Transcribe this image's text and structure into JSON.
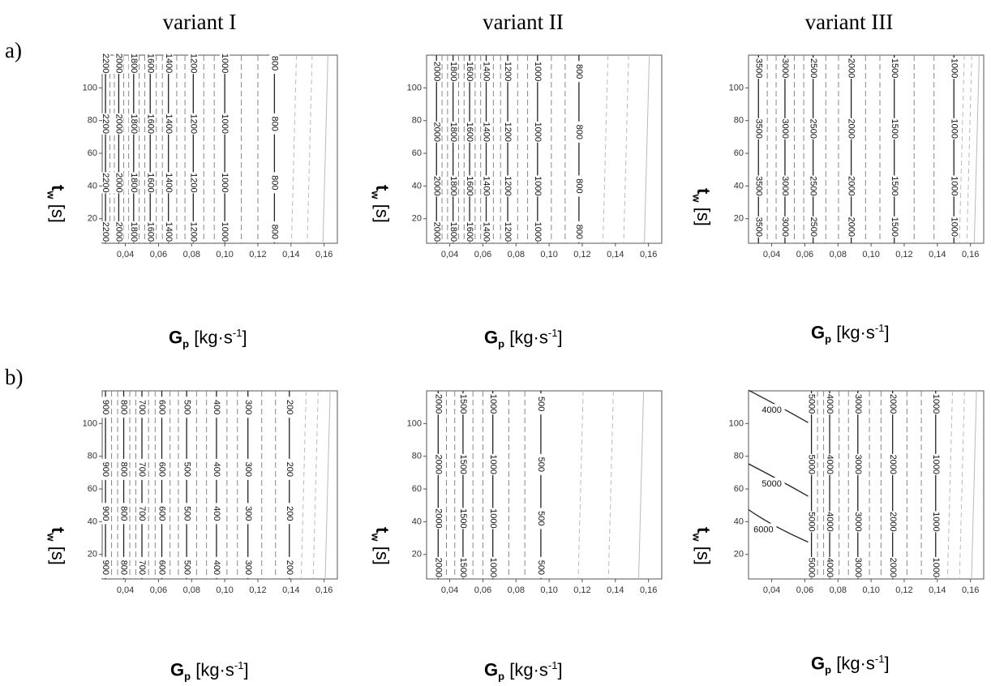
{
  "columns": [
    "variant I",
    "variant II",
    "variant III"
  ],
  "rows": [
    "a)",
    "b)"
  ],
  "axis": {
    "x_label_main": "G",
    "x_label_sub": "p",
    "x_label_unit": "[kg·s",
    "x_label_sup": "-1",
    "x_label_close": "]",
    "y_label_main": "t",
    "y_label_sub": "w",
    "y_label_unit": "[s]"
  },
  "chart_data": [
    {
      "id": "a-I",
      "type": "contour",
      "row": "a)",
      "variant": "variant I",
      "xlim": [
        0.026,
        0.168
      ],
      "ylim": [
        5,
        120
      ],
      "xticks": [
        "0,04",
        "0,06",
        "0,08",
        "0,10",
        "0,12",
        "0,14",
        "0,16"
      ],
      "yticks": [
        20,
        40,
        60,
        80,
        100
      ],
      "levels": [
        2200,
        2000,
        1800,
        1600,
        1400,
        1200,
        1000,
        800
      ],
      "contours": [
        {
          "level": 2200,
          "x": 0.028
        },
        {
          "level": 2000,
          "x": 0.036
        },
        {
          "level": 1800,
          "x": 0.045
        },
        {
          "level": 1600,
          "x": 0.055
        },
        {
          "level": 1400,
          "x": 0.066
        },
        {
          "level": 1200,
          "x": 0.081
        },
        {
          "level": 1000,
          "x": 0.1
        },
        {
          "level": 800,
          "x": 0.13
        }
      ],
      "label_ys": [
        115,
        78,
        42,
        12
      ]
    },
    {
      "id": "a-II",
      "type": "contour",
      "row": "a)",
      "variant": "variant II",
      "xlim": [
        0.026,
        0.168
      ],
      "ylim": [
        5,
        120
      ],
      "xticks": [
        "0,04",
        "0,06",
        "0,08",
        "0,10",
        "0,12",
        "0,14",
        "0,16"
      ],
      "yticks": [
        20,
        40,
        60,
        80,
        100
      ],
      "levels": [
        2000,
        1800,
        1600,
        1400,
        1200,
        1000,
        800
      ],
      "contours": [
        {
          "level": 2000,
          "x": 0.032
        },
        {
          "level": 1800,
          "x": 0.042
        },
        {
          "level": 1600,
          "x": 0.052
        },
        {
          "level": 1400,
          "x": 0.062
        },
        {
          "level": 1200,
          "x": 0.075
        },
        {
          "level": 1000,
          "x": 0.093
        },
        {
          "level": 800,
          "x": 0.118
        }
      ],
      "label_ys": [
        110,
        73,
        40,
        12
      ]
    },
    {
      "id": "a-III",
      "type": "contour",
      "row": "a)",
      "variant": "variant III",
      "xlim": [
        0.026,
        0.168
      ],
      "ylim": [
        5,
        120
      ],
      "xticks": [
        "0,04",
        "0,06",
        "0,08",
        "0,10",
        "0,12",
        "0,14",
        "0,16"
      ],
      "yticks": [
        20,
        40,
        60,
        80,
        100
      ],
      "levels": [
        3500,
        3000,
        2500,
        2000,
        1500,
        1000
      ],
      "contours": [
        {
          "level": 3500,
          "x": 0.032
        },
        {
          "level": 3000,
          "x": 0.048
        },
        {
          "level": 2500,
          "x": 0.065
        },
        {
          "level": 2000,
          "x": 0.088
        },
        {
          "level": 1500,
          "x": 0.114
        },
        {
          "level": 1000,
          "x": 0.15
        }
      ],
      "label_ys": [
        112,
        75,
        40,
        15
      ]
    },
    {
      "id": "b-I",
      "type": "contour",
      "row": "b)",
      "variant": "variant I",
      "xlim": [
        0.026,
        0.168
      ],
      "ylim": [
        5,
        120
      ],
      "xticks": [
        "0,04",
        "0,06",
        "0,08",
        "0,10",
        "0,12",
        "0,14",
        "0,16"
      ],
      "yticks": [
        20,
        40,
        60,
        80,
        100
      ],
      "levels": [
        900,
        800,
        700,
        600,
        500,
        400,
        300,
        200
      ],
      "contours": [
        {
          "level": 900,
          "x": 0.028
        },
        {
          "level": 800,
          "x": 0.039
        },
        {
          "level": 700,
          "x": 0.05
        },
        {
          "level": 600,
          "x": 0.062
        },
        {
          "level": 500,
          "x": 0.077
        },
        {
          "level": 400,
          "x": 0.095
        },
        {
          "level": 300,
          "x": 0.114
        },
        {
          "level": 200,
          "x": 0.139
        }
      ],
      "label_ys": [
        110,
        72,
        45,
        12
      ]
    },
    {
      "id": "b-II",
      "type": "contour",
      "row": "b)",
      "variant": "variant II",
      "xlim": [
        0.026,
        0.168
      ],
      "ylim": [
        5,
        120
      ],
      "xticks": [
        "0,04",
        "0,06",
        "0,08",
        "0,10",
        "0,12",
        "0,14",
        "0,16"
      ],
      "yticks": [
        20,
        40,
        60,
        80,
        100
      ],
      "levels": [
        2000,
        1500,
        1000,
        500
      ],
      "contours": [
        {
          "level": 2000,
          "x": 0.033
        },
        {
          "level": 1500,
          "x": 0.048
        },
        {
          "level": 1000,
          "x": 0.066
        },
        {
          "level": 500,
          "x": 0.095
        }
      ],
      "label_ys": [
        112,
        75,
        42,
        12
      ]
    },
    {
      "id": "b-III",
      "type": "contour",
      "row": "b)",
      "variant": "variant III",
      "xlim": [
        0.026,
        0.168
      ],
      "ylim": [
        5,
        120
      ],
      "xticks": [
        "0,04",
        "0,06",
        "0,08",
        "0,10",
        "0,12",
        "0,14",
        "0,16"
      ],
      "yticks": [
        20,
        40,
        60,
        80,
        100
      ],
      "levels": [
        6000,
        5000,
        4000,
        3000,
        2000,
        1000
      ],
      "contours": [
        {
          "level": 5000,
          "x": 0.064
        },
        {
          "level": 4000,
          "x": 0.075
        },
        {
          "level": 3000,
          "x": 0.092
        },
        {
          "level": 2000,
          "x": 0.113
        },
        {
          "level": 1000,
          "x": 0.139
        }
      ],
      "curved": [
        {
          "level": 4000,
          "x": 0.04,
          "y": 108
        },
        {
          "level": 5000,
          "x": 0.04,
          "y": 63
        },
        {
          "level": 6000,
          "x": 0.035,
          "y": 35
        }
      ],
      "label_ys": [
        112,
        75,
        40,
        12
      ]
    }
  ]
}
